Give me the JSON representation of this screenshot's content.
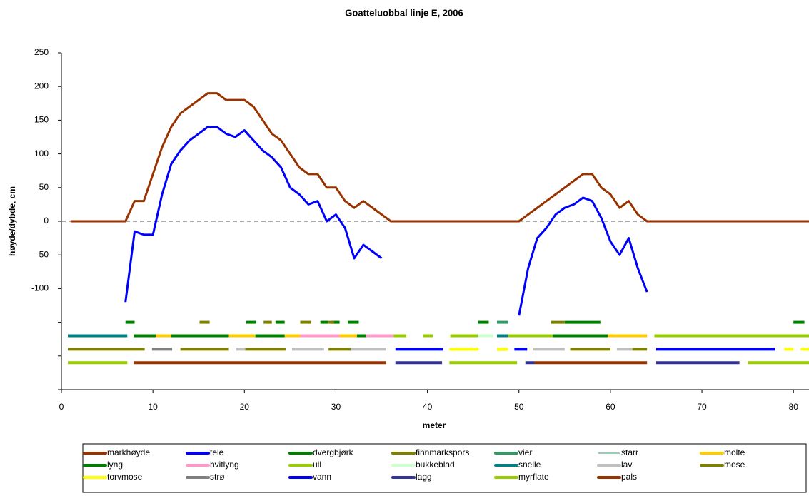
{
  "chart_data": {
    "type": "line",
    "title": "Goatteluobbal linje E, 2006",
    "x_label": "meter",
    "y_label": "høyde/dybde, cm",
    "xlim": [
      0,
      81.7
    ],
    "xticks": [
      0,
      10,
      20,
      30,
      40,
      50,
      60,
      70,
      80
    ],
    "ylim": [
      -250,
      250
    ],
    "yticks": [
      250,
      200,
      150,
      100,
      50,
      0,
      -50,
      -100,
      {
        "value": -150,
        "label": null
      },
      {
        "value": -200,
        "label": null
      },
      {
        "value": -250,
        "label": null
      }
    ],
    "grid": false,
    "zero_line": true,
    "legend": "bottom",
    "series": [
      {
        "name": "markhøyde",
        "color": "#993300",
        "x": [
          1,
          7,
          8,
          9,
          10,
          11,
          12,
          13,
          14,
          15,
          16,
          17,
          18,
          19,
          20,
          21,
          22,
          23,
          24,
          25,
          26,
          27,
          28,
          29,
          30,
          31,
          32,
          33,
          34,
          35,
          36,
          50,
          51,
          52,
          53,
          54,
          55,
          56,
          57,
          58,
          59,
          60,
          61,
          62,
          63,
          64,
          82
        ],
        "values": [
          0,
          0,
          30,
          30,
          70,
          110,
          140,
          160,
          170,
          180,
          190,
          190,
          180,
          180,
          180,
          170,
          150,
          130,
          120,
          100,
          80,
          70,
          70,
          50,
          50,
          30,
          20,
          30,
          20,
          10,
          0,
          0,
          10,
          20,
          30,
          40,
          50,
          60,
          70,
          70,
          50,
          40,
          20,
          30,
          10,
          0,
          0
        ]
      },
      {
        "name": "tele",
        "color": "#0000FF",
        "x": [
          7,
          8,
          9,
          10,
          11,
          12,
          13,
          14,
          15,
          16,
          17,
          18,
          19,
          20,
          21,
          22,
          23,
          24,
          25,
          26,
          27,
          28,
          29,
          30,
          31,
          32,
          33,
          34,
          35,
          36,
          50,
          51,
          52,
          53,
          54,
          55,
          56,
          57,
          58,
          59,
          60,
          61,
          62,
          63,
          64
        ],
        "values": [
          -120,
          -15,
          -20,
          -20,
          40,
          85,
          105,
          120,
          130,
          140,
          140,
          130,
          125,
          135,
          120,
          105,
          95,
          80,
          50,
          40,
          25,
          30,
          0,
          10,
          -10,
          -55,
          -35,
          -45,
          -55,
          null,
          -140,
          -70,
          -25,
          -10,
          10,
          20,
          25,
          35,
          30,
          5,
          -30,
          -50,
          -25,
          -70,
          -105
        ]
      },
      {
        "name": "dvergbjørk",
        "color": "#008000",
        "level": -150,
        "segments": [
          [
            7,
            8
          ],
          [
            20.2,
            21.3
          ],
          [
            23.4,
            24.4
          ],
          [
            28.3,
            29.2
          ],
          [
            29.5,
            30.4
          ],
          [
            31.3,
            32.5
          ],
          [
            45.5,
            46.7
          ],
          [
            55,
            58.9
          ],
          [
            80,
            81.2
          ]
        ]
      },
      {
        "name": "finnmarkspors",
        "color": "#808000",
        "level": -150,
        "segments": [
          [
            15.1,
            16.2
          ],
          [
            22.1,
            23
          ],
          [
            26.1,
            27.3
          ],
          [
            29.2,
            29.8
          ],
          [
            53.5,
            55
          ]
        ]
      },
      {
        "name": "vier",
        "color": "#339966",
        "level": -150,
        "segments": [
          [
            47.6,
            48.8
          ]
        ]
      },
      {
        "name": "starr",
        "color": "#339966",
        "width": 1
      },
      {
        "name": "molte",
        "color": "#FFCC00",
        "level": -170,
        "segments": [
          [
            10.3,
            12
          ],
          [
            18.3,
            21.2
          ],
          [
            24.4,
            26.1
          ],
          [
            30.4,
            32.3
          ],
          [
            59.7,
            64
          ]
        ]
      },
      {
        "name": "lyng",
        "color": "#008000",
        "level": -170,
        "segments": [
          [
            7.9,
            10.3
          ],
          [
            12,
            18.3
          ],
          [
            21.2,
            24.4
          ],
          [
            32.3,
            33.3
          ],
          [
            53.7,
            59.7
          ]
        ]
      },
      {
        "name": "hvitlyng",
        "color": "#FF99CC",
        "level": -170,
        "segments": [
          [
            26.1,
            30.4
          ],
          [
            33.3,
            36.3
          ],
          [
            51.7,
            53
          ]
        ]
      },
      {
        "name": "ull",
        "color": "#99CC00",
        "level": -170,
        "segments": [
          [
            36.3,
            37.7
          ],
          [
            39.5,
            40.6
          ],
          [
            42.5,
            45.5
          ],
          [
            48.8,
            53.7
          ],
          [
            64.8,
            81.7
          ]
        ]
      },
      {
        "name": "bukkeblad",
        "color": "#CCFFCC",
        "level": -170,
        "segments": [
          [
            45.5,
            47.2
          ]
        ]
      },
      {
        "name": "snelle",
        "color": "#008080",
        "level": -170,
        "segments": [
          [
            0.7,
            7.2
          ],
          [
            47.6,
            48.8
          ]
        ]
      },
      {
        "name": "lav",
        "color": "#C0C0C0",
        "level": -190,
        "segments": [
          [
            19.1,
            20.1
          ],
          [
            25.2,
            28.7
          ],
          [
            31.6,
            35.5
          ],
          [
            51.5,
            55
          ],
          [
            60.7,
            62.4
          ]
        ]
      },
      {
        "name": "mose",
        "color": "#808000",
        "level": -190,
        "segments": [
          [
            0.7,
            9.1
          ],
          [
            13,
            18.3
          ],
          [
            20.1,
            24.5
          ],
          [
            29.2,
            31.6
          ],
          [
            47.6,
            48.6
          ],
          [
            55.6,
            60
          ],
          [
            62.4,
            64
          ]
        ]
      },
      {
        "name": "torvmose",
        "color": "#FFFF00",
        "level": -190,
        "segments": [
          [
            42.4,
            45.6
          ],
          [
            47.6,
            48.8
          ],
          [
            79,
            80
          ],
          [
            80.8,
            81.7
          ]
        ]
      },
      {
        "name": "strø",
        "color": "#808080",
        "level": -190,
        "segments": [
          [
            9.9,
            12.1
          ]
        ]
      },
      {
        "name": "vann",
        "color": "#0000FF",
        "level": -190,
        "segments": [
          [
            36.5,
            41.7
          ],
          [
            49.5,
            50.9
          ],
          [
            65,
            78
          ]
        ]
      },
      {
        "name": "lagg",
        "color": "#333399",
        "level": -210,
        "segments": [
          [
            36.5,
            41.6
          ],
          [
            50.7,
            51.7
          ],
          [
            65,
            74.1
          ]
        ]
      },
      {
        "name": "myrflate",
        "color": "#99CC00",
        "level": -210,
        "segments": [
          [
            0.7,
            7.2
          ],
          [
            42.4,
            49.8
          ],
          [
            75,
            81.7
          ]
        ]
      },
      {
        "name": "pals",
        "color": "#993300",
        "level": -210,
        "segments": [
          [
            7.9,
            35.5
          ],
          [
            51.7,
            64
          ]
        ]
      }
    ]
  }
}
